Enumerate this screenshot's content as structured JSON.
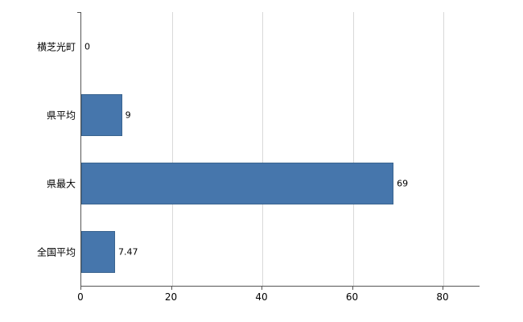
{
  "chart_data": {
    "type": "bar",
    "orientation": "horizontal",
    "title": "",
    "xlabel": "",
    "ylabel": "",
    "categories": [
      "横芝光町",
      "県平均",
      "県最大",
      "全国平均"
    ],
    "values": [
      0,
      9,
      69,
      7.47
    ],
    "value_labels": [
      "0",
      "9",
      "69",
      "7.47"
    ],
    "xlim": [
      0,
      88
    ],
    "xticks": [
      0,
      20,
      40,
      60,
      80
    ],
    "grid": "vertical-gridlines-at-xticks",
    "legend": "none",
    "colors": {
      "bar": "#4676AC",
      "bar_border": "#3A648F",
      "axis": "#555555",
      "gridline": "#d9d9d9",
      "text": "#000000",
      "background": "#ffffff"
    }
  }
}
